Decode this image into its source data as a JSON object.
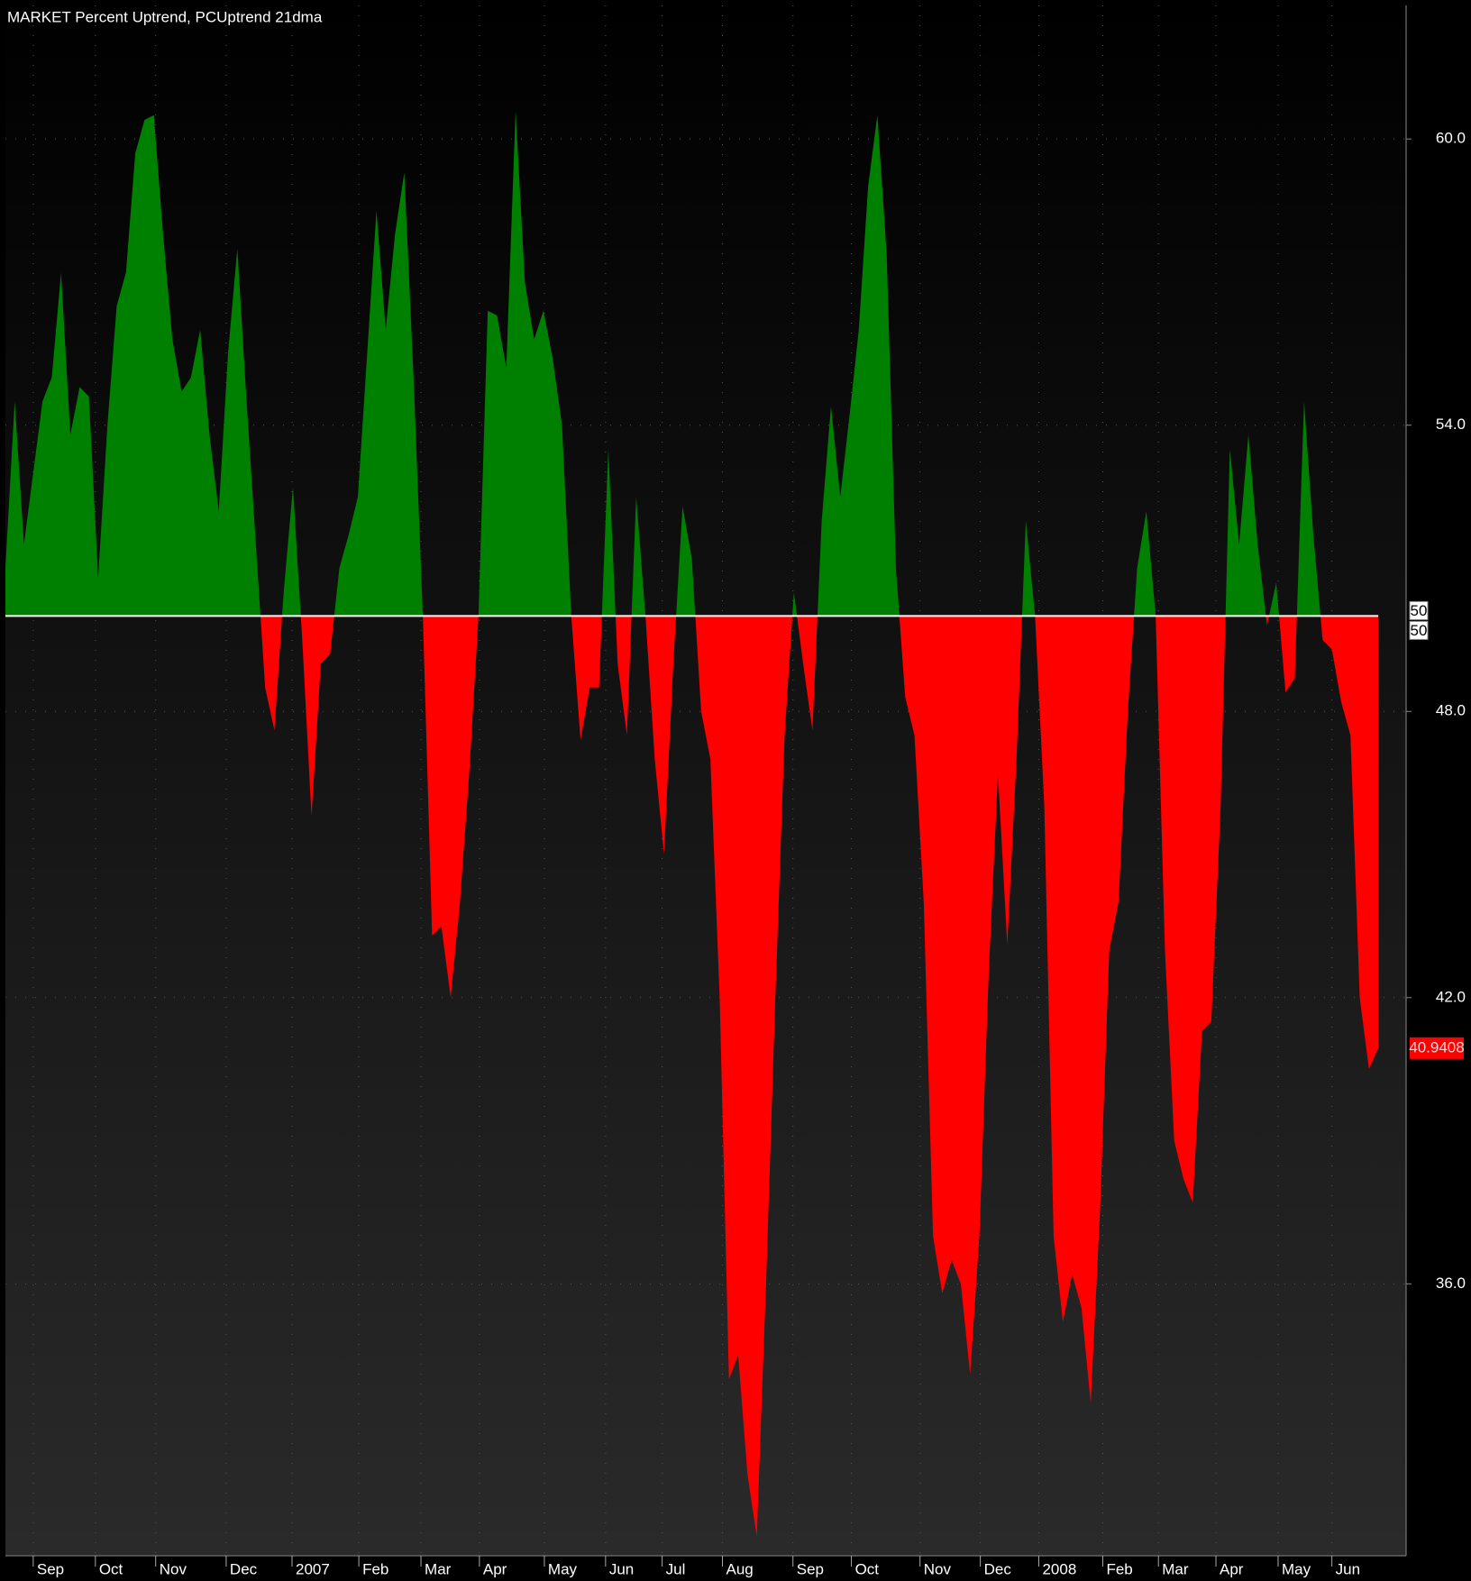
{
  "chart_data": {
    "type": "area",
    "title": "MARKET Percent Uptrend, PCUptrend 21dma",
    "threshold": 50,
    "above_color": "#008000",
    "below_color": "#ff0000",
    "grid": true,
    "values": [
      51,
      54.5,
      51.5,
      53,
      54.5,
      55,
      57.2,
      53.8,
      54.8,
      54.6,
      50.8,
      54,
      56.5,
      57.2,
      59.7,
      60.4,
      60.5,
      58,
      55.8,
      54.7,
      55,
      56,
      53.8,
      52.2,
      55.5,
      57.7,
      54.5,
      51.5,
      48.5,
      47.6,
      50.5,
      52.7,
      49.5,
      45.8,
      49,
      49.2,
      51,
      51.7,
      52.5,
      55.5,
      58.5,
      56,
      58,
      59.3,
      55,
      50,
      43.3,
      43.5,
      42,
      44,
      46.7,
      50,
      56.4,
      56.3,
      55.2,
      60.6,
      57,
      55.8,
      56.4,
      55.4,
      54,
      50,
      47.4,
      48.5,
      48.5,
      53.5,
      49,
      47.5,
      52.5,
      50,
      47,
      45,
      49,
      52.3,
      51.2,
      48,
      47,
      42,
      34,
      34.5,
      32,
      30.7,
      36,
      42,
      47.5,
      50.5,
      49,
      47.6,
      52,
      54.4,
      52.5,
      54.2,
      56,
      59,
      60.5,
      57.6,
      51,
      48.3,
      47.5,
      44,
      37,
      35.8,
      36.5,
      36,
      34.1,
      37,
      42.5,
      46.7,
      43.1,
      47,
      52,
      50,
      46,
      37,
      35.2,
      36.2,
      35.5,
      33.5,
      37.5,
      43,
      44,
      48,
      51,
      52.2,
      50,
      43,
      39,
      38.2,
      37.7,
      41.3,
      41.5,
      46,
      53.5,
      51.5,
      53.8,
      51.5,
      49.8,
      50.7,
      48.4,
      48.7,
      54.5,
      51.7,
      49.5,
      49.3,
      48.2,
      47.5,
      42,
      40.5,
      40.9408
    ],
    "last_value_label": "40.9408",
    "xlim": [
      0,
      151
    ],
    "xticks": [
      {
        "value": 3,
        "label": "Sep"
      },
      {
        "value": 9.7,
        "label": "Oct"
      },
      {
        "value": 16.2,
        "label": "Nov"
      },
      {
        "value": 23.8,
        "label": "Dec"
      },
      {
        "value": 30.9,
        "label": "2007"
      },
      {
        "value": 38.1,
        "label": "Feb"
      },
      {
        "value": 44.8,
        "label": "Mar"
      },
      {
        "value": 51.1,
        "label": "Apr"
      },
      {
        "value": 58.1,
        "label": "May"
      },
      {
        "value": 64.7,
        "label": "Jun"
      },
      {
        "value": 70.8,
        "label": "Jul"
      },
      {
        "value": 77.3,
        "label": "Aug"
      },
      {
        "value": 84.9,
        "label": "Sep"
      },
      {
        "value": 91.2,
        "label": "Oct"
      },
      {
        "value": 98.6,
        "label": "Nov"
      },
      {
        "value": 105.1,
        "label": "Dec"
      },
      {
        "value": 111.4,
        "label": "2008"
      },
      {
        "value": 118.3,
        "label": "Feb"
      },
      {
        "value": 124.3,
        "label": "Mar"
      },
      {
        "value": 130.5,
        "label": "Apr"
      },
      {
        "value": 137.2,
        "label": "May"
      },
      {
        "value": 143,
        "label": "Jun"
      }
    ],
    "ylim": [
      30.3,
      62.8
    ],
    "yticks": [
      {
        "value": 60,
        "label": "60.0"
      },
      {
        "value": 54,
        "label": "54.0"
      },
      {
        "value": 48,
        "label": "48.0"
      },
      {
        "value": 42,
        "label": "42.0"
      },
      {
        "value": 36,
        "label": "36.0"
      }
    ]
  }
}
